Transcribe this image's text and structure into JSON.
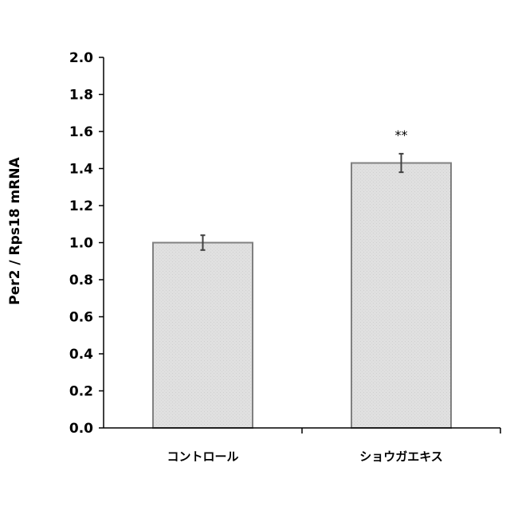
{
  "chart_data": {
    "type": "bar",
    "categories": [
      "コントロール",
      "ショウガエキス"
    ],
    "values": [
      1.0,
      1.43
    ],
    "errors": [
      0.04,
      0.05
    ],
    "significance": [
      "",
      "**"
    ],
    "ylabel": "Per2 / Rps18 mRNA",
    "xlabel": "",
    "ylim": [
      0,
      2.0
    ],
    "yticks": [
      "0.0",
      "0.2",
      "0.4",
      "0.6",
      "0.8",
      "1.0",
      "1.2",
      "1.4",
      "1.6",
      "1.8",
      "2.0"
    ],
    "grid": false,
    "legend": "none",
    "bar_color": "#e0e0e0",
    "bar_edge_color": "#808080"
  }
}
